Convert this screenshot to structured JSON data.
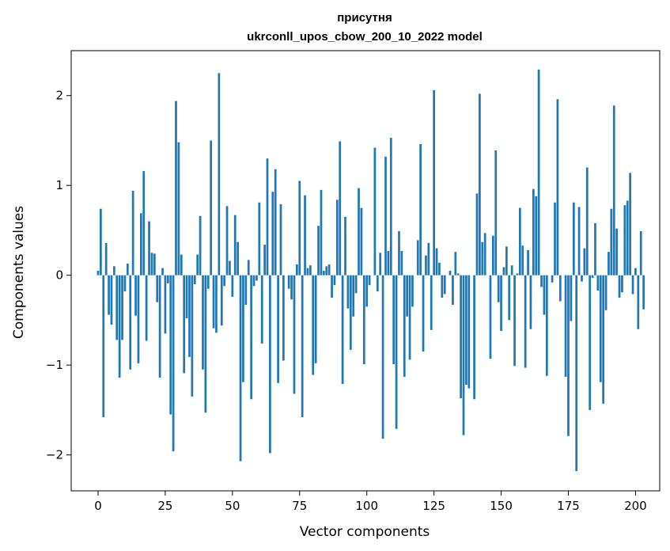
{
  "chart_data": {
    "type": "bar",
    "title": "присутня",
    "subtitle": "ukrconll_upos_cbow_200_10_2022 model",
    "xlabel": "Vector components",
    "ylabel": "Components values",
    "xlim": [
      -10,
      209
    ],
    "ylim": [
      -2.4,
      2.5
    ],
    "xticks": [
      0,
      25,
      50,
      75,
      100,
      125,
      150,
      175,
      200
    ],
    "xtick_labels": [
      "0",
      "25",
      "50",
      "75",
      "100",
      "125",
      "150",
      "175",
      "200"
    ],
    "yticks": [
      -2,
      -1,
      0,
      1,
      2
    ],
    "ytick_labels": [
      "−2",
      "−1",
      "0",
      "1",
      "2"
    ],
    "grid": false,
    "bar_color": "#1f77b4",
    "values": [
      0.05,
      0.74,
      -1.58,
      0.36,
      -0.44,
      -0.55,
      0.1,
      -0.72,
      -1.14,
      -0.72,
      -0.18,
      0.13,
      -1.05,
      0.94,
      -0.45,
      -0.98,
      0.69,
      1.16,
      -0.73,
      0.6,
      0.25,
      0.24,
      -0.3,
      -1.14,
      0.08,
      -0.65,
      -0.09,
      -1.55,
      -1.96,
      1.94,
      1.48,
      0.23,
      -1.09,
      -0.48,
      -0.91,
      -1.35,
      -0.1,
      0.23,
      0.66,
      -1.05,
      -1.53,
      -0.15,
      1.5,
      -0.59,
      -0.64,
      2.25,
      -0.56,
      -0.12,
      0.77,
      0.16,
      -0.24,
      0.67,
      0.37,
      -2.07,
      -1.19,
      -0.33,
      0.17,
      -1.38,
      -0.12,
      -0.06,
      0.81,
      -0.76,
      0.34,
      1.3,
      -1.98,
      0.93,
      1.18,
      -1.2,
      0.79,
      -0.95,
      0.0,
      -0.15,
      -0.27,
      -1.32,
      0.12,
      1.05,
      -1.58,
      0.89,
      0.08,
      0.11,
      -1.11,
      -0.98,
      0.55,
      0.95,
      0.05,
      0.1,
      0.12,
      -0.25,
      -0.11,
      0.84,
      1.49,
      -1.21,
      0.65,
      -0.37,
      -0.83,
      -0.46,
      -0.2,
      0.97,
      0.75,
      -0.99,
      -0.35,
      -0.11,
      0.0,
      1.42,
      -0.18,
      0.25,
      -1.82,
      1.32,
      0.27,
      1.53,
      -0.99,
      -1.71,
      0.49,
      0.27,
      -1.13,
      -0.46,
      -0.94,
      -0.35,
      0.0,
      0.39,
      1.46,
      -0.85,
      0.22,
      0.36,
      -0.61,
      2.06,
      0.3,
      0.14,
      -0.25,
      -0.21,
      0.0,
      0.05,
      -0.33,
      0.26,
      0.02,
      -1.37,
      -1.78,
      -1.22,
      -1.26,
      0.0,
      -1.38,
      0.91,
      2.02,
      0.37,
      0.47,
      0.0,
      -0.93,
      0.44,
      1.39,
      -0.3,
      -0.62,
      0.09,
      0.32,
      -0.5,
      0.11,
      -1.01,
      0.02,
      0.75,
      0.33,
      -1.03,
      0.28,
      -0.6,
      0.96,
      0.88,
      2.29,
      -0.13,
      -0.44,
      -1.12,
      0.0,
      -0.08,
      0.81,
      1.96,
      -0.29,
      0.0,
      -1.13,
      -1.79,
      -0.51,
      0.81,
      -2.18,
      0.76,
      -0.07,
      0.3,
      1.2,
      -1.5,
      -0.03,
      0.58,
      -0.17,
      -1.19,
      -1.43,
      -0.39,
      0.26,
      0.74,
      1.89,
      0.52,
      -0.25,
      -0.19,
      0.78,
      0.83,
      1.14,
      -0.21,
      0.08,
      -0.6,
      0.49,
      -0.38
    ]
  }
}
